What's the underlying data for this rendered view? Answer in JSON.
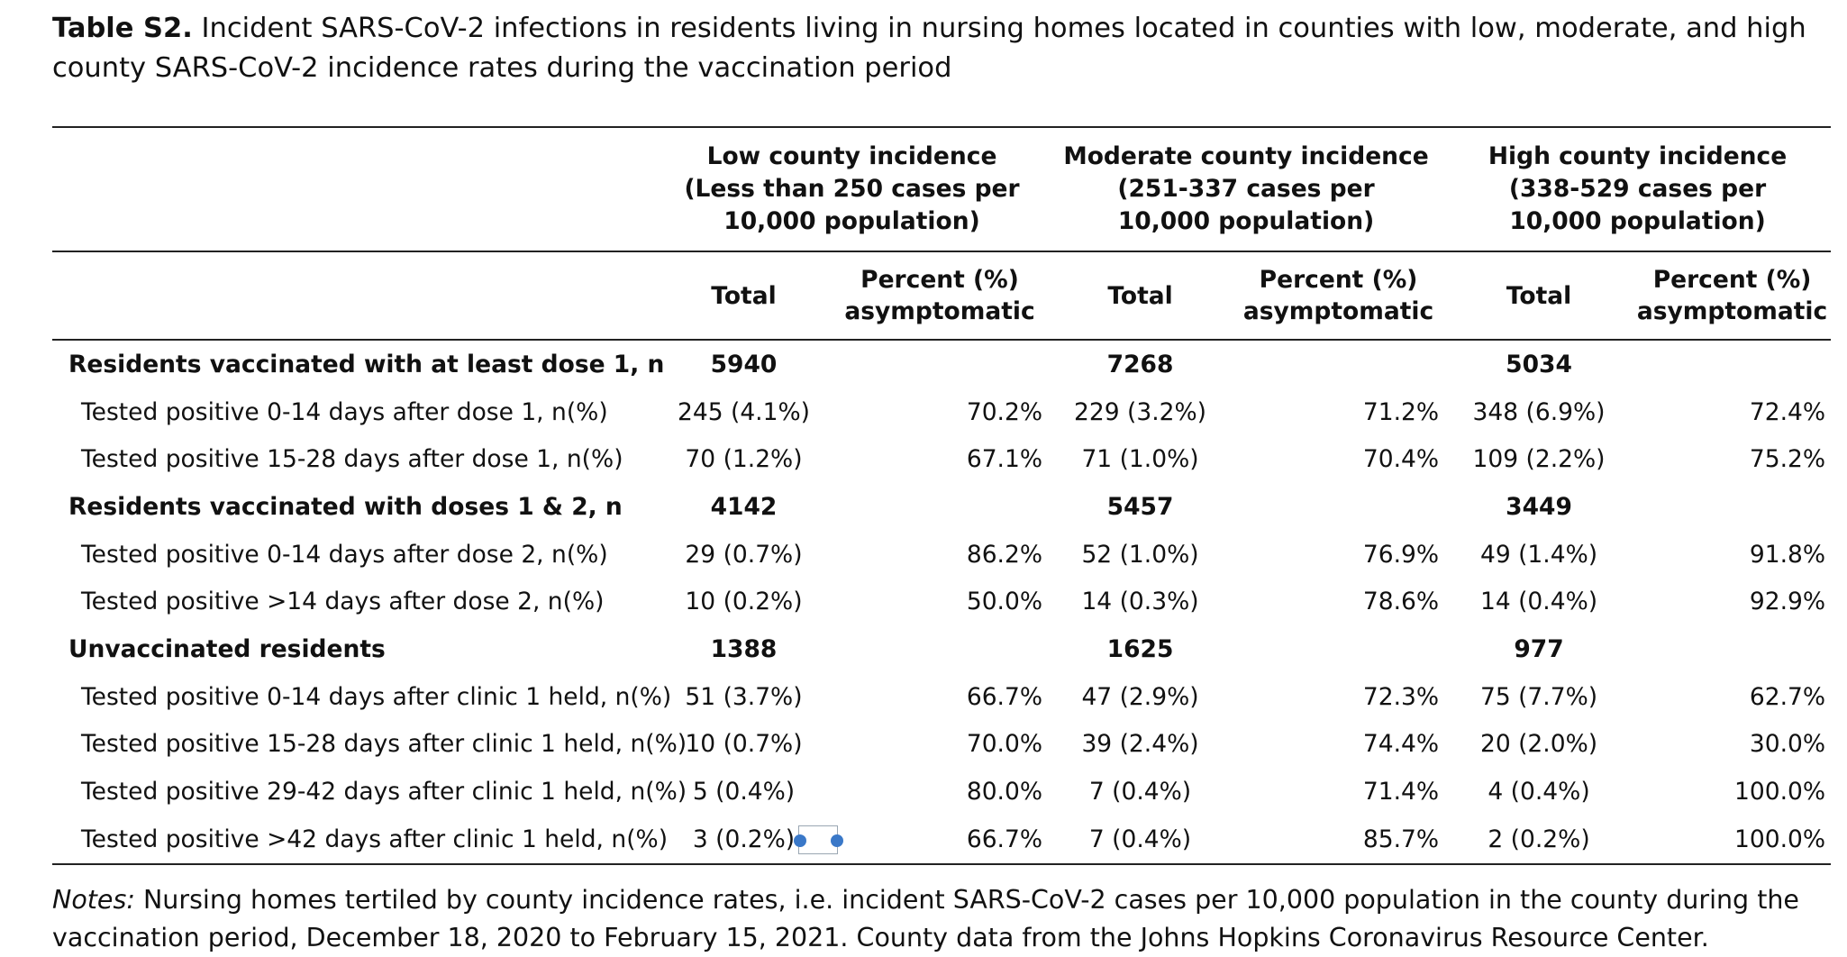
{
  "caption": {
    "label": "Table S2.",
    "text": " Incident SARS-CoV-2 infections in residents living in nursing homes located in counties with low, moderate, and high county SARS-CoV-2 incidence rates during the vaccination period"
  },
  "table": {
    "groups": [
      {
        "line1": "Low county incidence",
        "line2": "(Less than 250 cases per",
        "line3": "10,000 population)"
      },
      {
        "line1": "Moderate county incidence",
        "line2": "(251-337 cases per",
        "line3": "10,000 population)"
      },
      {
        "line1": "High county incidence",
        "line2": "(338-529 cases per",
        "line3": "10,000 population)"
      }
    ],
    "subheaders": {
      "total": "Total",
      "pct_line1": "Percent (%)",
      "pct_line2": "asymptomatic"
    },
    "rows": [
      {
        "type": "section",
        "label": "Residents vaccinated with at least dose 1, n",
        "cells": [
          "5940",
          "",
          "7268",
          "",
          "5034",
          ""
        ]
      },
      {
        "type": "item",
        "label": "Tested positive 0-14 days after dose 1, n(%)",
        "cells": [
          "245 (4.1%)",
          "70.2%",
          "229 (3.2%)",
          "71.2%",
          "348 (6.9%)",
          "72.4%"
        ]
      },
      {
        "type": "item",
        "label": "Tested positive 15-28 days after dose 1, n(%)",
        "cells": [
          "70 (1.2%)",
          "67.1%",
          "71 (1.0%)",
          "70.4%",
          "109 (2.2%)",
          "75.2%"
        ]
      },
      {
        "type": "section",
        "label": "Residents vaccinated with doses 1 & 2, n",
        "cells": [
          "4142",
          "",
          "5457",
          "",
          "3449",
          ""
        ]
      },
      {
        "type": "item",
        "label": "Tested positive 0-14 days after dose 2, n(%)",
        "cells": [
          "29 (0.7%)",
          "86.2%",
          "52 (1.0%)",
          "76.9%",
          "49 (1.4%)",
          "91.8%"
        ]
      },
      {
        "type": "item",
        "label": "Tested positive >14 days after dose 2, n(%)",
        "cells": [
          "10 (0.2%)",
          "50.0%",
          "14 (0.3%)",
          "78.6%",
          "14 (0.4%)",
          "92.9%"
        ]
      },
      {
        "type": "section",
        "label": "Unvaccinated residents",
        "cells": [
          "1388",
          "",
          "1625",
          "",
          "977",
          ""
        ]
      },
      {
        "type": "item",
        "label": "Tested positive 0-14 days after clinic 1 held, n(%)",
        "cells": [
          "51 (3.7%)",
          "66.7%",
          "47 (2.9%)",
          "72.3%",
          "75 (7.7%)",
          "62.7%"
        ]
      },
      {
        "type": "item",
        "label": "Tested positive 15-28 days after clinic 1 held, n(%)",
        "cells": [
          "10 (0.7%)",
          "70.0%",
          "39 (2.4%)",
          "74.4%",
          "20 (2.0%)",
          "30.0%"
        ]
      },
      {
        "type": "item",
        "label": "Tested positive 29-42 days after clinic 1 held, n(%)",
        "cells": [
          "5 (0.4%)",
          "80.0%",
          "7 (0.4%)",
          "71.4%",
          "4 (0.4%)",
          "100.0%"
        ]
      },
      {
        "type": "item",
        "label": "Tested positive >42 days after clinic 1 held, n(%)",
        "cells": [
          "3 (0.2%)",
          "66.7%",
          "7 (0.4%)",
          "85.7%",
          "2 (0.2%)",
          "100.0%"
        ]
      }
    ]
  },
  "notes": {
    "label": "Notes:",
    "text": " Nursing homes tertiled by county incidence rates, i.e. incident SARS-CoV-2 cases per 10,000 population in the county during the vaccination period, December 18, 2020 to February 15, 2021. County data from the Johns Hopkins Coronavirus Resource Center."
  },
  "colors": {
    "selection_handle": "#3a78c8",
    "rule": "#222222"
  }
}
